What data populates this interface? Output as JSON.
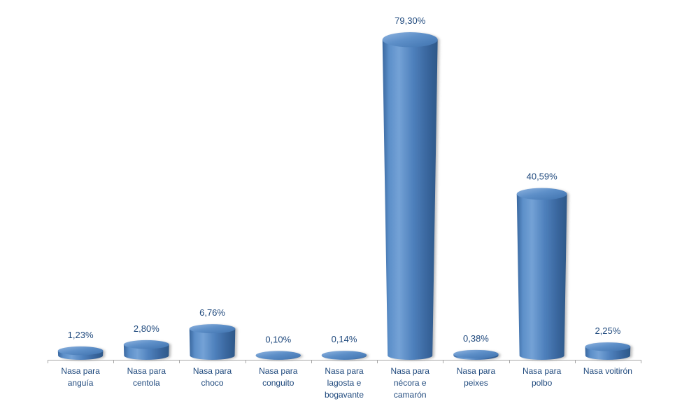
{
  "chart_data": {
    "type": "bar",
    "style": "3d-cylinder",
    "title": "",
    "xlabel": "",
    "ylabel": "",
    "categories": [
      "Nasa para anguía",
      "Nasa para centola",
      "Nasa para choco",
      "Nasa para conguito",
      "Nasa para lagosta e bogavante",
      "Nasa para nécora e camarón",
      "Nasa para peixes",
      "Nasa para polbo",
      "Nasa voitirón"
    ],
    "category_label_lines": [
      [
        "Nasa para",
        "anguía"
      ],
      [
        "Nasa para",
        "centola"
      ],
      [
        "Nasa para",
        "choco"
      ],
      [
        "Nasa para",
        "conguito"
      ],
      [
        "Nasa para",
        "lagosta e",
        "bogavante"
      ],
      [
        "Nasa para",
        "nécora e",
        "camarón"
      ],
      [
        "Nasa para",
        "peixes"
      ],
      [
        "Nasa para",
        "polbo"
      ],
      [
        "Nasa voitirón"
      ]
    ],
    "values": [
      1.23,
      2.8,
      6.76,
      0.1,
      0.14,
      79.3,
      0.38,
      40.59,
      2.25
    ],
    "value_labels": [
      "1,23%",
      "2,80%",
      "6,76%",
      "0,10%",
      "0,14%",
      "79,30%",
      "0,38%",
      "40,59%",
      "2,25%"
    ],
    "value_label_position": "above",
    "decimal_separator": ",",
    "ylim": [
      0,
      85
    ],
    "grid": false,
    "legend": false,
    "colors": {
      "background": "#FFFFFF",
      "label_text": "#1F497D",
      "axis_line": "#A6A6A6",
      "bar_base": "#4F81BD",
      "body_stops": [
        {
          "offset": "0%",
          "color": "#39679F"
        },
        {
          "offset": "12%",
          "color": "#5C8FC9"
        },
        {
          "offset": "30%",
          "color": "#74A2D6"
        },
        {
          "offset": "55%",
          "color": "#4F81BD"
        },
        {
          "offset": "80%",
          "color": "#3A679F"
        },
        {
          "offset": "100%",
          "color": "#2D5888"
        }
      ],
      "top_stops": [
        {
          "offset": "0%",
          "color": "#8FB4E0"
        },
        {
          "offset": "45%",
          "color": "#5D8FC8"
        },
        {
          "offset": "100%",
          "color": "#4072AE"
        }
      ],
      "shadow": "#888888"
    }
  }
}
